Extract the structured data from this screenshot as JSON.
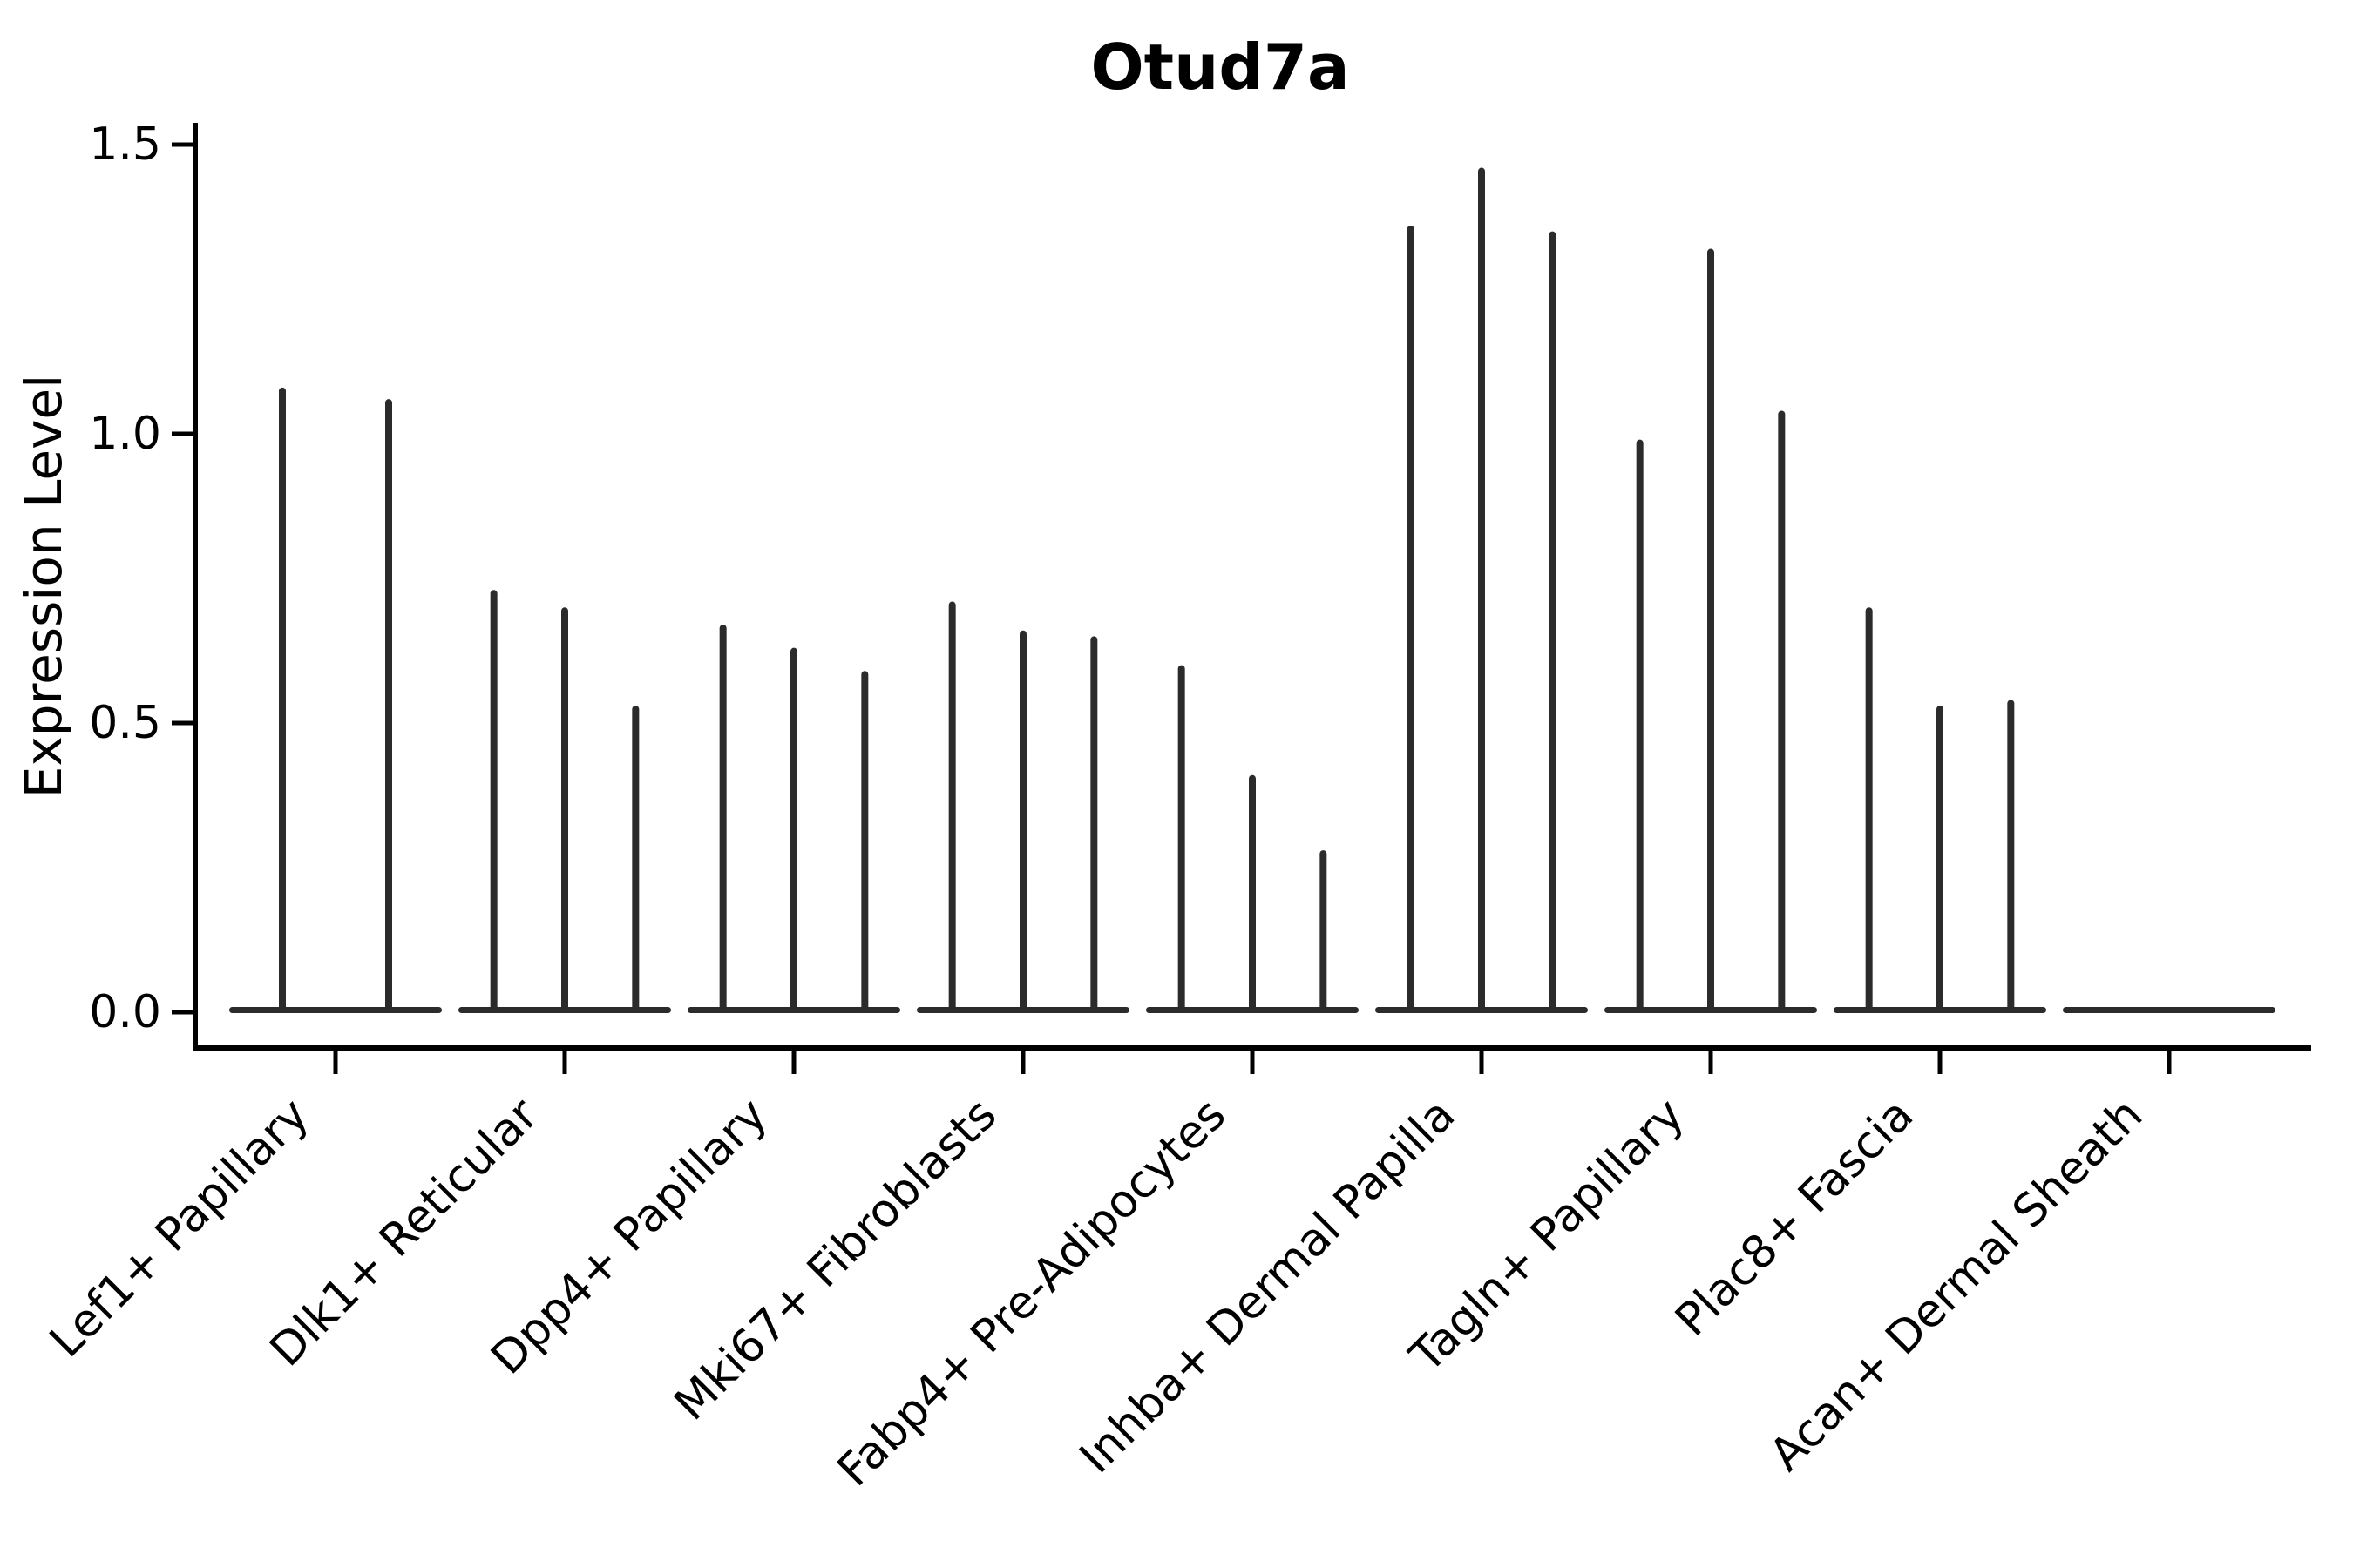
{
  "chart_data": {
    "type": "violin",
    "title": "Otud7a",
    "xlabel": "",
    "ylabel": "Expression Level",
    "ylim": [
      0,
      1.5
    ],
    "ytick_values": [
      0.0,
      0.5,
      1.0,
      1.5
    ],
    "ytick_labels": [
      "0.0",
      "0.5",
      "1.0",
      "1.5"
    ],
    "grid": false,
    "legend": "none",
    "style": "single-gene expression violin plot; each violin collapses to a wide flat base at 0 with a thin spike up to its maximum expression value",
    "categories": [
      "Lef1+ Papillary",
      "Dlk1+ Reticular",
      "Dpp4+ Papillary",
      "Mki67+ Fibroblasts",
      "Fabp4+ Pre-Adipocytes",
      "Inhba+ Dermal Papilla",
      "Tagln+ Papillary",
      "Plac8+ Fascia",
      "Acan+ Dermal Sheath"
    ],
    "groups": [
      {
        "category": "Lef1+ Papillary",
        "base_value": 0,
        "violin_peaks": [
          1.08,
          1.06
        ]
      },
      {
        "category": "Dlk1+ Reticular",
        "base_value": 0,
        "violin_peaks": [
          0.73,
          0.7,
          0.53
        ]
      },
      {
        "category": "Dpp4+ Papillary",
        "base_value": 0,
        "violin_peaks": [
          0.67,
          0.63,
          0.59
        ]
      },
      {
        "category": "Mki67+ Fibroblasts",
        "base_value": 0,
        "violin_peaks": [
          0.71,
          0.66,
          0.65
        ]
      },
      {
        "category": "Fabp4+ Pre-Adipocytes",
        "base_value": 0,
        "violin_peaks": [
          0.6,
          0.41,
          0.28
        ]
      },
      {
        "category": "Inhba+ Dermal Papilla",
        "base_value": 0,
        "violin_peaks": [
          1.36,
          1.46,
          1.35
        ]
      },
      {
        "category": "Tagln+ Papillary",
        "base_value": 0,
        "violin_peaks": [
          0.99,
          1.32,
          1.04
        ]
      },
      {
        "category": "Plac8+ Fascia",
        "base_value": 0,
        "violin_peaks": [
          0.7,
          0.53,
          0.54
        ]
      },
      {
        "category": "Acan+ Dermal Sheath",
        "base_value": 0,
        "violin_peaks": []
      }
    ],
    "colors": {
      "violin": "#2b2b2b",
      "axis": "#000000",
      "text": "#000000",
      "background": "#ffffff"
    }
  }
}
